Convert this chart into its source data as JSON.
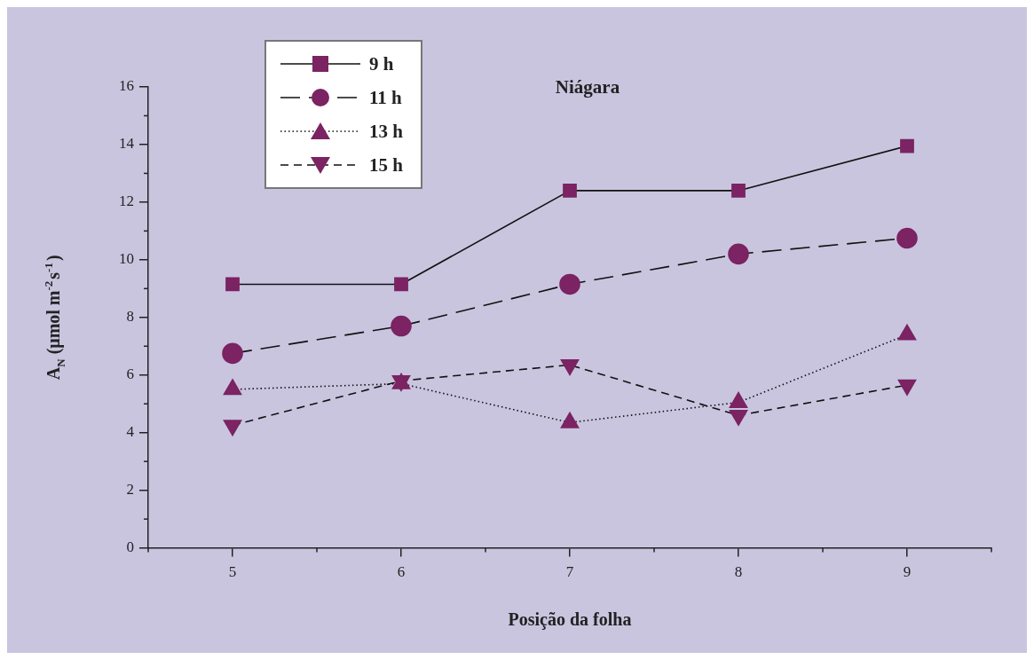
{
  "chart_data": {
    "type": "line",
    "title": "Niágara",
    "xlabel": "Posição da folha",
    "ylabel": "A$_{N}$ (μmol m$^{-2}$s$^{-1}$)",
    "x": [
      5,
      6,
      7,
      8,
      9
    ],
    "xlim": [
      4.5,
      9.5
    ],
    "xticks": [
      5,
      6,
      7,
      8,
      9
    ],
    "ylim": [
      0,
      16
    ],
    "yticks": [
      0,
      2,
      4,
      6,
      8,
      10,
      12,
      14,
      16
    ],
    "grid": false,
    "legend": "top left",
    "series": [
      {
        "name": "9 h",
        "color": "#7b2363",
        "values": [
          9.15,
          9.15,
          12.4,
          12.4,
          13.95
        ],
        "marker": "square",
        "line_style": "solid"
      },
      {
        "name": "11 h",
        "color": "#7b2363",
        "values": [
          6.75,
          7.7,
          9.15,
          10.2,
          10.75
        ],
        "marker": "circle",
        "line_style": "dashed"
      },
      {
        "name": "13 h",
        "color": "#7b2363",
        "values": [
          5.5,
          5.7,
          4.35,
          5.05,
          7.4
        ],
        "marker": "triangle",
        "line_style": "dotted"
      },
      {
        "name": "15 h",
        "color": "#7b2363",
        "values": [
          4.25,
          5.8,
          6.35,
          4.6,
          5.65
        ],
        "marker": "triangle-down",
        "line_style": "dashed"
      }
    ]
  }
}
